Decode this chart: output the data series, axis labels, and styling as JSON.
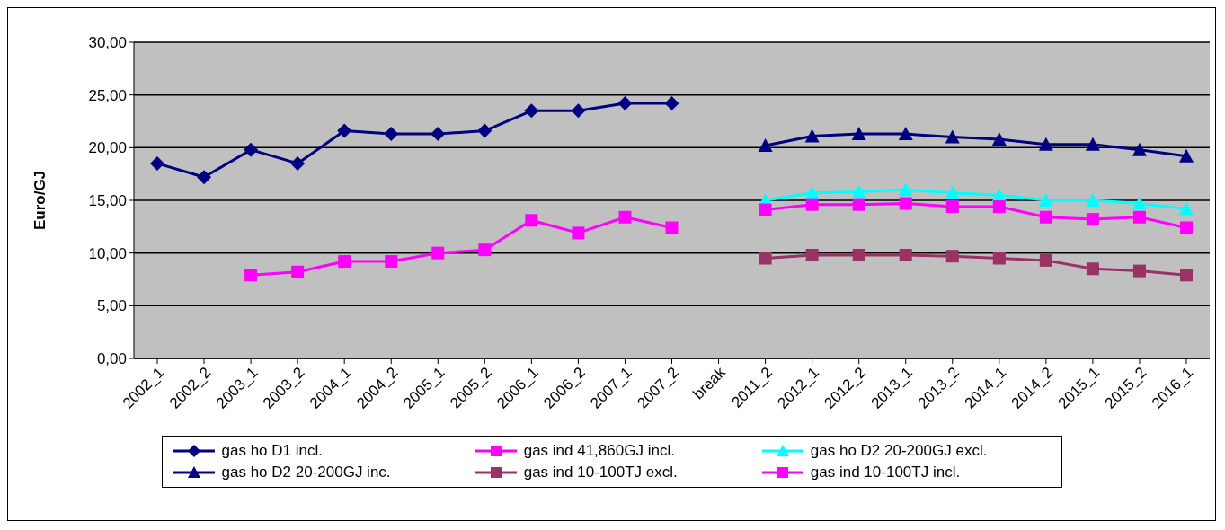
{
  "chart_data": {
    "type": "line",
    "ylabel": "Euro/GJ",
    "categories": [
      "2002_1",
      "2002_2",
      "2003_1",
      "2003_2",
      "2004_1",
      "2004_2",
      "2005_1",
      "2005_2",
      "2006_1",
      "2006_2",
      "2007_1",
      "2007_2",
      "break",
      "2011_2",
      "2012_1",
      "2012_2",
      "2013_1",
      "2013_2",
      "2014_1",
      "2014_2",
      "2015_1",
      "2015_2",
      "2016_1"
    ],
    "series": [
      {
        "name": "gas ho D1 incl.",
        "color": "#000080",
        "marker": "diamond",
        "values": [
          18.5,
          17.2,
          19.8,
          18.5,
          21.6,
          21.3,
          21.3,
          21.6,
          23.5,
          23.5,
          24.2,
          24.2,
          null,
          null,
          null,
          null,
          null,
          null,
          null,
          null,
          null,
          null,
          null
        ]
      },
      {
        "name": "gas ind 41,860GJ incl.",
        "color": "#ff00ff",
        "marker": "square",
        "values": [
          null,
          null,
          7.9,
          8.2,
          9.2,
          9.2,
          10.0,
          10.3,
          13.1,
          11.9,
          13.4,
          12.4,
          null,
          null,
          null,
          null,
          null,
          null,
          null,
          null,
          null,
          null,
          null
        ]
      },
      {
        "name": "gas ho D2 20-200GJ excl.",
        "color": "#00ffff",
        "marker": "triangle",
        "values": [
          null,
          null,
          null,
          null,
          null,
          null,
          null,
          null,
          null,
          null,
          null,
          null,
          null,
          15.0,
          15.7,
          15.8,
          16.0,
          15.7,
          15.5,
          15.0,
          15.0,
          14.7,
          14.2
        ]
      },
      {
        "name": "gas ho D2 20-200GJ inc.",
        "color": "#000080",
        "marker": "triangle",
        "values": [
          null,
          null,
          null,
          null,
          null,
          null,
          null,
          null,
          null,
          null,
          null,
          null,
          null,
          20.2,
          21.1,
          21.3,
          21.3,
          21.0,
          20.8,
          20.3,
          20.3,
          19.8,
          19.2
        ]
      },
      {
        "name": "gas ind 10-100TJ excl.",
        "color": "#993366",
        "marker": "square",
        "values": [
          null,
          null,
          null,
          null,
          null,
          null,
          null,
          null,
          null,
          null,
          null,
          null,
          null,
          9.5,
          9.8,
          9.8,
          9.8,
          9.7,
          9.5,
          9.3,
          8.5,
          8.3,
          7.9
        ]
      },
      {
        "name": "gas ind 10-100TJ incl.",
        "color": "#ff00ff",
        "marker": "square",
        "values": [
          null,
          null,
          null,
          null,
          null,
          null,
          null,
          null,
          null,
          null,
          null,
          null,
          null,
          14.1,
          14.6,
          14.6,
          14.7,
          14.4,
          14.4,
          13.4,
          13.2,
          13.4,
          12.4
        ]
      }
    ],
    "ylim": [
      0,
      30
    ],
    "yticks": [
      {
        "value": 0,
        "label": "0,00"
      },
      {
        "value": 5,
        "label": "5,00"
      },
      {
        "value": 10,
        "label": "10,00"
      },
      {
        "value": 15,
        "label": "15,00"
      },
      {
        "value": 20,
        "label": "20,00"
      },
      {
        "value": 25,
        "label": "25,00"
      },
      {
        "value": 30,
        "label": "30,00"
      }
    ],
    "grid": "y",
    "legend": "bottom",
    "line_style": "solid"
  }
}
